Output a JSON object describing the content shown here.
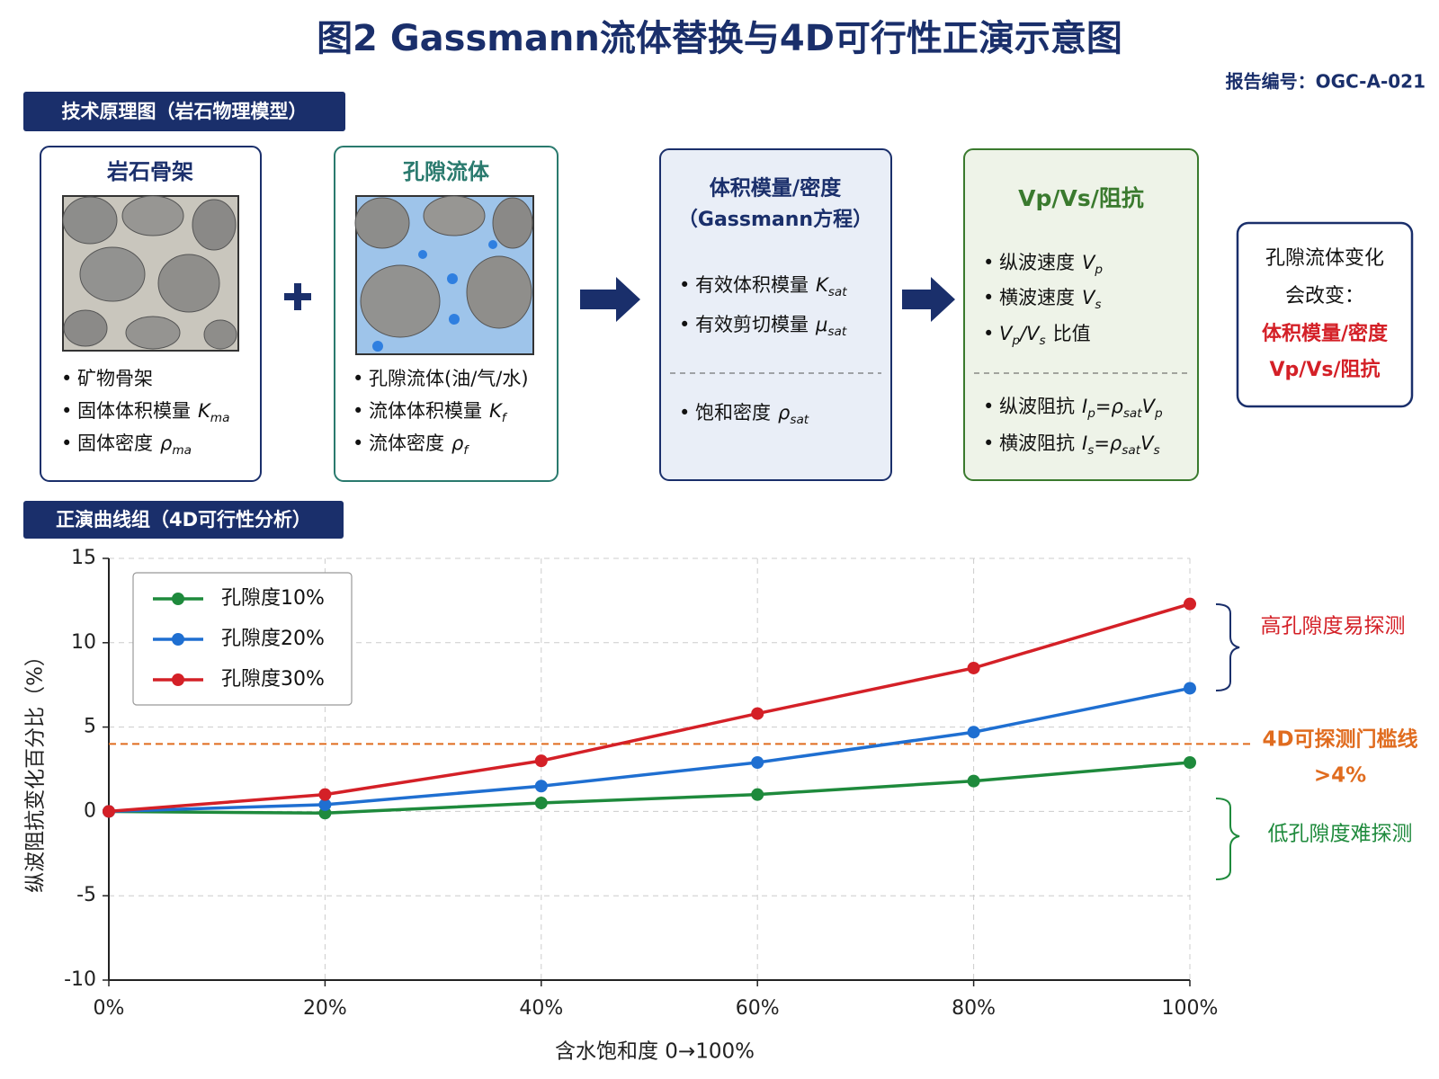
{
  "header": {
    "title": "图2  Gassmann流体替换与4D可行性正演示意图",
    "report_no": "报告编号：OGC-A-021"
  },
  "sections": [
    "技术原理图（岩石物理模型）",
    "正演曲线组（4D可行性分析）"
  ],
  "diagram": {
    "rock": {
      "title": "岩石骨架",
      "items": [
        {
          "text": "矿物骨架"
        },
        {
          "text": "固体体积模量",
          "math": [
            [
              "K",
              "ma"
            ]
          ]
        },
        {
          "text": "固体密度",
          "math": [
            [
              "ρ",
              "ma"
            ]
          ]
        }
      ]
    },
    "fluid": {
      "title": "孔隙流体",
      "items": [
        {
          "text": "孔隙流体(油/气/水)"
        },
        {
          "text": "流体体积模量",
          "math": [
            [
              "K",
              "f"
            ]
          ]
        },
        {
          "text": "流体密度",
          "math": [
            [
              "ρ",
              "f"
            ]
          ]
        }
      ]
    },
    "modulus": {
      "title": "体积模量/密度",
      "subtitle": "（Gassmann方程）",
      "items": [
        {
          "text": "有效体积模量",
          "math": [
            [
              "K",
              "sat"
            ]
          ]
        },
        {
          "text": "有效剪切模量",
          "math": [
            [
              "μ",
              "sat"
            ]
          ]
        }
      ],
      "items2": [
        {
          "text": "饱和密度",
          "math": [
            [
              "ρ",
              "sat"
            ]
          ]
        }
      ]
    },
    "velocity": {
      "title": "Vp/Vs/阻抗",
      "items": [
        {
          "text": "纵波速度",
          "math": [
            [
              "V",
              "p"
            ]
          ]
        },
        {
          "text": "横波速度",
          "math": [
            [
              "V",
              "s"
            ]
          ]
        },
        {
          "math": [
            [
              "V",
              "p"
            ],
            [
              "/"
            ],
            [
              "V",
              "s"
            ]
          ],
          "text_after": "比值"
        }
      ],
      "items2": [
        {
          "text": "纵波阻抗",
          "math": [
            [
              "I",
              "p"
            ],
            [
              "="
            ],
            [
              "ρ",
              "sat"
            ],
            [
              "V",
              "p"
            ]
          ]
        },
        {
          "text": "横波阻抗",
          "math": [
            [
              "I",
              "s"
            ],
            [
              "="
            ],
            [
              "ρ",
              "sat"
            ],
            [
              "V",
              "s"
            ]
          ]
        }
      ]
    },
    "note": {
      "lines": [
        "孔隙流体变化",
        "会改变："
      ],
      "highlights": [
        "体积模量/密度",
        "Vp/Vs/阻抗"
      ]
    }
  },
  "chart_data": {
    "type": "line",
    "x_label": "含水饱和度  0→100%",
    "y_label": "纵波阻抗变化百分比（%）",
    "x": [
      0,
      20,
      40,
      60,
      80,
      100
    ],
    "xlim": [
      0,
      100
    ],
    "xticks": [
      {
        "value": 0,
        "label": "0%"
      },
      {
        "value": 20,
        "label": "20%"
      },
      {
        "value": 40,
        "label": "40%"
      },
      {
        "value": 60,
        "label": "60%"
      },
      {
        "value": 80,
        "label": "80%"
      },
      {
        "value": 100,
        "label": "100%"
      }
    ],
    "ylim": [
      -10,
      15
    ],
    "yticks": [
      -10,
      -5,
      0,
      5,
      10,
      15
    ],
    "grid": true,
    "legend": "upper left",
    "series": [
      {
        "name": "孔隙度10%",
        "color": "#1e8a3c",
        "values": [
          0,
          -0.1,
          0.5,
          1.0,
          1.8,
          2.9
        ]
      },
      {
        "name": "孔隙度20%",
        "color": "#1f6fd1",
        "values": [
          0,
          0.4,
          1.5,
          2.9,
          4.7,
          7.3
        ]
      },
      {
        "name": "孔隙度30%",
        "color": "#d42027",
        "values": [
          0,
          1.0,
          3.0,
          5.8,
          8.5,
          12.3
        ]
      }
    ],
    "threshold": {
      "value": 4,
      "label": "4D可探测门槛线",
      "sub_label": ">4%",
      "color": "#e06c1f"
    },
    "annotations": [
      {
        "text": "高孔隙度易探测",
        "color": "#d42027"
      },
      {
        "text": "低孔隙度难探测",
        "color": "#1e8a3c"
      }
    ]
  }
}
